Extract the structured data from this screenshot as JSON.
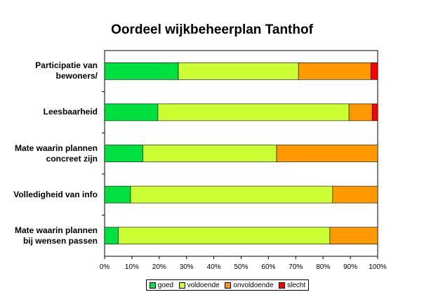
{
  "chart_data": {
    "type": "bar",
    "orientation": "horizontal",
    "stacked": "percent",
    "title": "Oordeel wijkbeheerplan Tanthof",
    "xlabel": "",
    "ylabel": "",
    "xlim": [
      0,
      100
    ],
    "x_ticks": [
      "0%",
      "10%",
      "20%",
      "30%",
      "40%",
      "50%",
      "60%",
      "70%",
      "80%",
      "90%",
      "100%"
    ],
    "grid": false,
    "legend_position": "bottom",
    "categories": [
      [
        "Participatie van",
        "bewoners/"
      ],
      [
        "Leesbaarheid"
      ],
      [
        "Mate waarin plannen",
        "concreet zijn"
      ],
      [
        "Volledigheid van info"
      ],
      [
        "Mate waarin plannen",
        "bij wensen passen"
      ]
    ],
    "series": [
      {
        "name": "goed",
        "color": "#00e040",
        "values": [
          27,
          19.5,
          14,
          9.5,
          5
        ]
      },
      {
        "name": "voldoende",
        "color": "#ccff33",
        "values": [
          44,
          70,
          49,
          74,
          77.5
        ]
      },
      {
        "name": "onvoldoende",
        "color": "#ff9900",
        "values": [
          26.5,
          8.5,
          37,
          16.5,
          17.5
        ]
      },
      {
        "name": "slecht",
        "color": "#ff0000",
        "values": [
          2.5,
          2,
          0,
          0,
          0
        ]
      }
    ]
  }
}
